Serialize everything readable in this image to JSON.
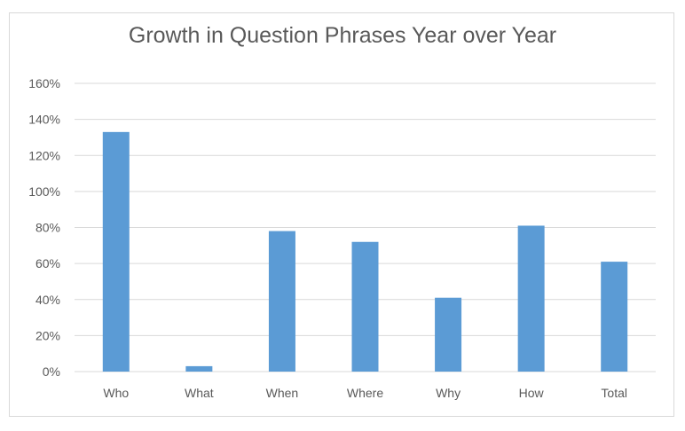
{
  "chart_data": {
    "type": "bar",
    "title": "Growth in Question Phrases Year over Year",
    "xlabel": "",
    "ylabel": "",
    "categories": [
      "Who",
      "What",
      "When",
      "Where",
      "Why",
      "How",
      "Total"
    ],
    "values": [
      1.33,
      0.03,
      0.78,
      0.72,
      0.41,
      0.81,
      0.61
    ],
    "ylim": [
      0,
      1.6
    ],
    "yticks": [
      {
        "value": 0,
        "label": "0%"
      },
      {
        "value": 0.2,
        "label": "20%"
      },
      {
        "value": 0.4,
        "label": "40%"
      },
      {
        "value": 0.6,
        "label": "60%"
      },
      {
        "value": 0.8,
        "label": "80%"
      },
      {
        "value": 1.0,
        "label": "100%"
      },
      {
        "value": 1.2,
        "label": "120%"
      },
      {
        "value": 1.4,
        "label": "140%"
      },
      {
        "value": 1.6,
        "label": "160%"
      }
    ],
    "grid": true,
    "legend": "none",
    "bar_color": "#5b9bd5",
    "grid_color": "#d9d9d9"
  }
}
